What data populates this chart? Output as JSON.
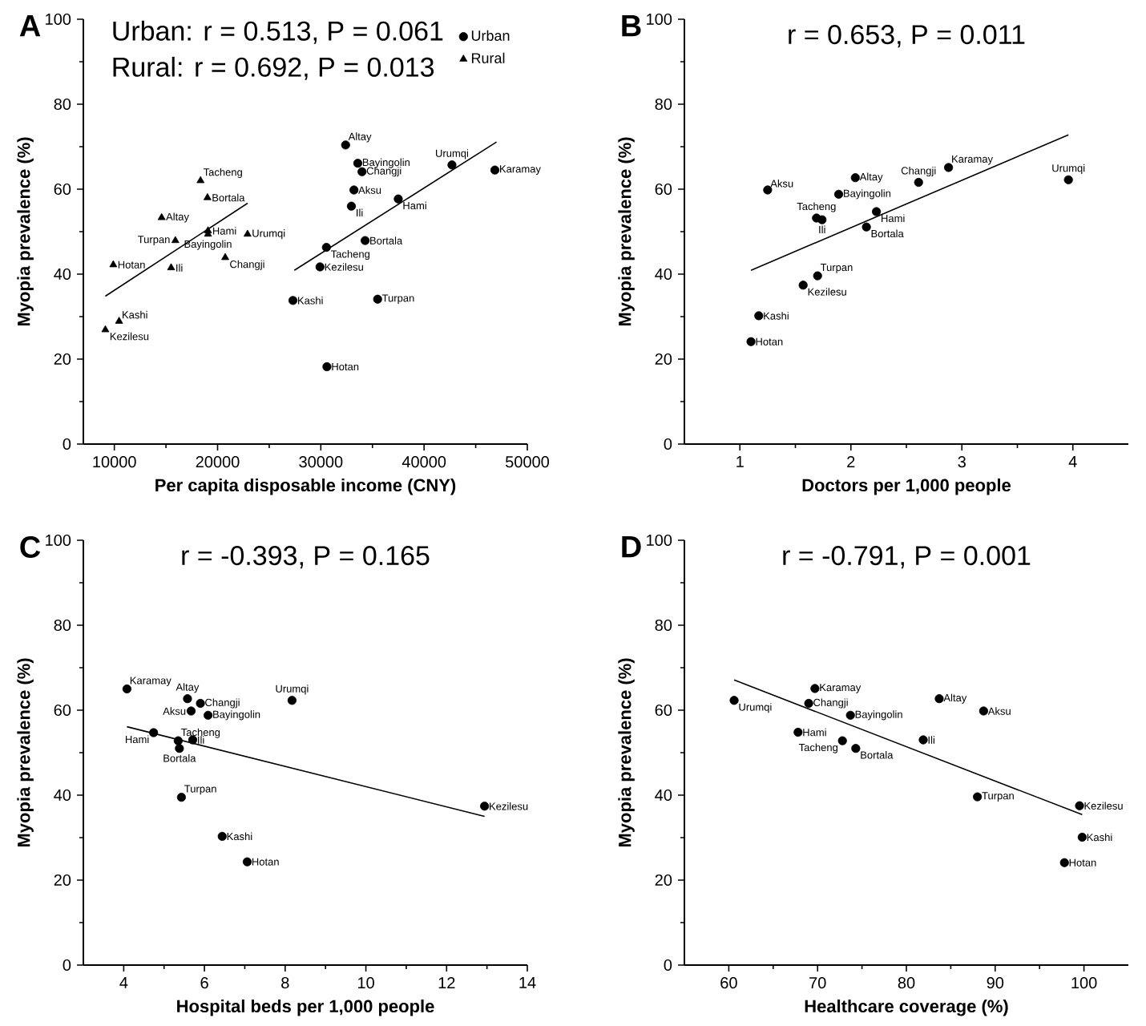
{
  "chart_data": [
    {
      "type": "scatter",
      "title": "A",
      "xlabel": "Per capita disposable income (CNY)",
      "ylabel": "Myopia prevalence (%)",
      "xlim": [
        7000,
        50000
      ],
      "ylim": [
        0,
        100
      ],
      "xticks": [
        10000,
        20000,
        30000,
        40000,
        50000
      ],
      "yticks": [
        0,
        20,
        40,
        60,
        80,
        100
      ],
      "legend": "top right",
      "series": [
        {
          "name": "Urban",
          "color": "#000000",
          "marker": "circle",
          "x": [
            32400,
            33580,
            33990,
            33210,
            32960,
            37500,
            42700,
            46860,
            34290,
            30540,
            29920,
            27300,
            35500,
            30590
          ],
          "values": [
            70.4,
            66.1,
            64.1,
            59.8,
            56.0,
            57.7,
            65.7,
            64.5,
            47.9,
            46.3,
            41.7,
            33.8,
            34.1,
            18.2
          ]
        },
        {
          "name": "Rural",
          "color": "#000000",
          "marker": "triangle",
          "x": [
            18350,
            19020,
            14580,
            19070,
            19070,
            15910,
            22900,
            20740,
            9900,
            15500,
            10460,
            9130
          ],
          "values": [
            62.0,
            58.0,
            53.3,
            50.2,
            49.4,
            47.9,
            49.4,
            43.9,
            42.2,
            41.5,
            28.9,
            26.9
          ]
        },
        {
          "type": "line",
          "color": "#000000",
          "marker": "none",
          "x": [
            27430,
            47020
          ],
          "values": [
            40.9,
            71.1
          ]
        },
        {
          "type": "line",
          "color": "#000000",
          "marker": "none",
          "x": [
            9130,
            22910
          ],
          "values": [
            34.8,
            56.7
          ]
        }
      ],
      "annotations": [
        "Urban: r = 0.513, P = 0.061",
        "Rural: r = 0.692, P = 0.013",
        {
          "text": "Altay",
          "x": 32400,
          "y": 70.4
        },
        {
          "text": "Bayingolin",
          "x": 33580,
          "y": 66.1
        },
        {
          "text": "Changji",
          "x": 33990,
          "y": 64.1
        },
        {
          "text": "Aksu",
          "x": 33210,
          "y": 59.8
        },
        {
          "text": "Ili",
          "x": 32960,
          "y": 56.0
        },
        {
          "text": "Hami",
          "x": 37500,
          "y": 57.7
        },
        {
          "text": "Urumqi",
          "x": 42700,
          "y": 65.7
        },
        {
          "text": "Karamay",
          "x": 46860,
          "y": 64.5
        },
        {
          "text": "Bortala",
          "x": 34290,
          "y": 47.9
        },
        {
          "text": "Tacheng",
          "x": 30540,
          "y": 46.3
        },
        {
          "text": "Kezilesu",
          "x": 29920,
          "y": 41.7
        },
        {
          "text": "Kashi",
          "x": 27300,
          "y": 33.8
        },
        {
          "text": "Turpan",
          "x": 35500,
          "y": 34.1
        },
        {
          "text": "Hotan",
          "x": 30590,
          "y": 18.2
        },
        {
          "text": "Tacheng",
          "x": 18350,
          "y": 62.0
        },
        {
          "text": "Bortala",
          "x": 19020,
          "y": 58.0
        },
        {
          "text": "Altay",
          "x": 14580,
          "y": 53.3
        },
        {
          "text": "Hami",
          "x": 19070,
          "y": 50.2
        },
        {
          "text": "Bayingolin",
          "x": 19070,
          "y": 49.4
        },
        {
          "text": "Turpan",
          "x": 15910,
          "y": 47.9
        },
        {
          "text": "Urumqi",
          "x": 22900,
          "y": 49.4
        },
        {
          "text": "Changji",
          "x": 20740,
          "y": 43.9
        },
        {
          "text": "Hotan",
          "x": 9900,
          "y": 42.2
        },
        {
          "text": "Ili",
          "x": 15500,
          "y": 41.5
        },
        {
          "text": "Kashi",
          "x": 10460,
          "y": 28.9
        },
        {
          "text": "Kezilesu",
          "x": 9130,
          "y": 26.9
        }
      ]
    },
    {
      "type": "scatter",
      "title": "B",
      "xlabel": "Doctors per 1,000 people",
      "ylabel": "Myopia prevalence (%)",
      "xlim": [
        0.5,
        4.5
      ],
      "ylim": [
        0,
        100
      ],
      "xticks": [
        1,
        2,
        3,
        4
      ],
      "yticks": [
        0,
        20,
        40,
        60,
        80,
        100
      ],
      "series": [
        {
          "color": "#000000",
          "marker": "circle",
          "x": [
            1.25,
            2.04,
            1.89,
            2.61,
            2.88,
            3.96,
            1.69,
            1.74,
            2.23,
            2.14,
            1.7,
            1.57,
            1.17,
            1.1
          ],
          "values": [
            59.8,
            62.7,
            58.8,
            61.6,
            65.1,
            62.2,
            53.2,
            52.8,
            54.7,
            51.1,
            39.6,
            37.4,
            30.2,
            24.1
          ]
        },
        {
          "type": "line",
          "color": "#000000",
          "marker": "none",
          "x": [
            1.1,
            3.96
          ],
          "values": [
            40.9,
            72.8
          ]
        }
      ],
      "annotations": [
        "r = 0.653, P = 0.011",
        {
          "text": "Aksu",
          "x": 1.25,
          "y": 59.8
        },
        {
          "text": "Altay",
          "x": 2.04,
          "y": 62.7
        },
        {
          "text": "Bayingolin",
          "x": 1.89,
          "y": 58.8
        },
        {
          "text": "Changji",
          "x": 2.61,
          "y": 61.6
        },
        {
          "text": "Karamay",
          "x": 2.88,
          "y": 65.1
        },
        {
          "text": "Urumqi",
          "x": 3.96,
          "y": 62.2
        },
        {
          "text": "Tacheng",
          "x": 1.69,
          "y": 53.2
        },
        {
          "text": "Ili",
          "x": 1.74,
          "y": 52.8
        },
        {
          "text": "Hami",
          "x": 2.23,
          "y": 54.7
        },
        {
          "text": "Bortala",
          "x": 2.14,
          "y": 51.1
        },
        {
          "text": "Turpan",
          "x": 1.7,
          "y": 39.6
        },
        {
          "text": "Kezilesu",
          "x": 1.57,
          "y": 37.4
        },
        {
          "text": "Kashi",
          "x": 1.17,
          "y": 30.2
        },
        {
          "text": "Hotan",
          "x": 1.1,
          "y": 24.1
        }
      ]
    },
    {
      "type": "scatter",
      "title": "C",
      "xlabel": "Hospital beds per 1,000 people",
      "ylabel": "Myopia prevalence (%)",
      "xlim": [
        3,
        14
      ],
      "ylim": [
        0,
        100
      ],
      "xticks": [
        4,
        6,
        8,
        10,
        12,
        14
      ],
      "yticks": [
        0,
        20,
        40,
        60,
        80,
        100
      ],
      "series": [
        {
          "color": "#000000",
          "marker": "circle",
          "x": [
            4.08,
            5.58,
            5.9,
            5.67,
            6.09,
            8.17,
            4.74,
            5.35,
            5.71,
            5.38,
            5.43,
            12.94,
            6.44,
            7.06
          ],
          "values": [
            65.0,
            62.7,
            61.6,
            59.8,
            58.8,
            62.3,
            54.7,
            52.8,
            53.0,
            51.0,
            39.5,
            37.4,
            30.3,
            24.3
          ]
        },
        {
          "type": "line",
          "color": "#000000",
          "marker": "none",
          "x": [
            4.08,
            12.94
          ],
          "values": [
            56.1,
            35.0
          ]
        }
      ],
      "annotations": [
        "r = -0.393, P = 0.165",
        {
          "text": "Karamay",
          "x": 4.08,
          "y": 65.0
        },
        {
          "text": "Altay",
          "x": 5.58,
          "y": 62.7
        },
        {
          "text": "Changji",
          "x": 5.9,
          "y": 61.6
        },
        {
          "text": "Aksu",
          "x": 5.67,
          "y": 59.8
        },
        {
          "text": "Bayingolin",
          "x": 6.09,
          "y": 58.8
        },
        {
          "text": "Urumqi",
          "x": 8.17,
          "y": 62.3
        },
        {
          "text": "Hami",
          "x": 4.74,
          "y": 54.7
        },
        {
          "text": "Tacheng",
          "x": 5.35,
          "y": 52.8
        },
        {
          "text": "Ili",
          "x": 5.71,
          "y": 53.0
        },
        {
          "text": "Bortala",
          "x": 5.38,
          "y": 51.0
        },
        {
          "text": "Turpan",
          "x": 5.43,
          "y": 39.5
        },
        {
          "text": "Kezilesu",
          "x": 12.94,
          "y": 37.4
        },
        {
          "text": "Kashi",
          "x": 6.44,
          "y": 30.3
        },
        {
          "text": "Hotan",
          "x": 7.06,
          "y": 24.3
        }
      ]
    },
    {
      "type": "scatter",
      "title": "D",
      "xlabel": "Healthcare coverage (%)",
      "ylabel": "Myopia prevalence (%)",
      "xlim": [
        55,
        105
      ],
      "ylim": [
        0,
        100
      ],
      "xticks": [
        60,
        70,
        80,
        90,
        100
      ],
      "yticks": [
        0,
        20,
        40,
        60,
        80,
        100
      ],
      "series": [
        {
          "color": "#000000",
          "marker": "circle",
          "x": [
            60.6,
            69.7,
            69.0,
            73.7,
            67.8,
            72.8,
            74.3,
            83.7,
            88.7,
            81.9,
            88.0,
            99.5,
            99.8,
            97.8
          ],
          "values": [
            62.3,
            65.1,
            61.6,
            58.8,
            54.8,
            52.8,
            51.0,
            62.7,
            59.8,
            53.0,
            39.6,
            37.5,
            30.1,
            24.1
          ]
        },
        {
          "type": "line",
          "color": "#000000",
          "marker": "none",
          "x": [
            60.6,
            99.8
          ],
          "values": [
            67.1,
            35.4
          ]
        }
      ],
      "annotations": [
        "r = -0.791, P = 0.001",
        {
          "text": "Urumqi",
          "x": 60.6,
          "y": 62.3
        },
        {
          "text": "Karamay",
          "x": 69.7,
          "y": 65.1
        },
        {
          "text": "Changji",
          "x": 69.0,
          "y": 61.6
        },
        {
          "text": "Bayingolin",
          "x": 73.7,
          "y": 58.8
        },
        {
          "text": "Hami",
          "x": 67.8,
          "y": 54.8
        },
        {
          "text": "Tacheng",
          "x": 72.8,
          "y": 52.8
        },
        {
          "text": "Bortala",
          "x": 74.3,
          "y": 51.0
        },
        {
          "text": "Altay",
          "x": 83.7,
          "y": 62.7
        },
        {
          "text": "Aksu",
          "x": 88.7,
          "y": 59.8
        },
        {
          "text": "Ili",
          "x": 81.9,
          "y": 53.0
        },
        {
          "text": "Turpan",
          "x": 88.0,
          "y": 39.6
        },
        {
          "text": "Kezilesu",
          "x": 99.5,
          "y": 37.5
        },
        {
          "text": "Kashi",
          "x": 99.8,
          "y": 30.1
        },
        {
          "text": "Hotan",
          "x": 97.8,
          "y": 24.1
        }
      ]
    }
  ]
}
